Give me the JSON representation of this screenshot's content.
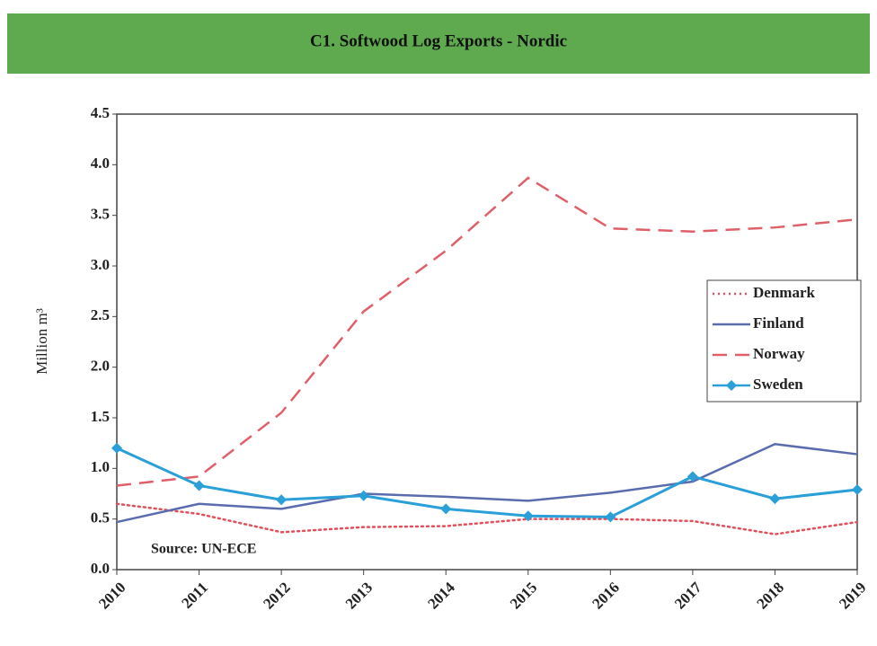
{
  "chart_data": {
    "type": "line",
    "title": "C1. Softwood Log Exports - Nordic",
    "ylabel": "Million m³",
    "annotation": "Source: UN-ECE",
    "categories": [
      "2010",
      "2011",
      "2012",
      "2013",
      "2014",
      "2015",
      "2016",
      "2017",
      "2018",
      "2019"
    ],
    "series": [
      {
        "name": "Denmark",
        "color": "#e0505a",
        "style": "dotted",
        "values": [
          0.65,
          0.55,
          0.37,
          0.42,
          0.43,
          0.5,
          0.5,
          0.48,
          0.35,
          0.47
        ]
      },
      {
        "name": "Finland",
        "color": "#5a6cae",
        "style": "solid",
        "values": [
          0.47,
          0.65,
          0.6,
          0.75,
          0.72,
          0.68,
          0.76,
          0.87,
          1.24,
          1.14
        ]
      },
      {
        "name": "Norway",
        "color": "#e0606a",
        "style": "dashed",
        "values": [
          0.83,
          0.92,
          1.55,
          2.55,
          3.15,
          3.87,
          3.37,
          3.34,
          3.38,
          3.46
        ]
      },
      {
        "name": "Sweden",
        "color": "#2a9fd8",
        "style": "solid",
        "marker": "diamond",
        "values": [
          1.2,
          0.83,
          0.69,
          0.73,
          0.6,
          0.53,
          0.52,
          0.92,
          0.7,
          0.79
        ]
      }
    ],
    "ylim": [
      0,
      4.5
    ],
    "yticks": [
      {
        "value": 0,
        "label": "0.0"
      },
      0.5,
      {
        "value": 1,
        "label": "1.0"
      },
      1.5,
      {
        "value": 2,
        "label": "2.0"
      },
      2.5,
      {
        "value": 3,
        "label": "3.0"
      },
      3.5,
      {
        "value": 4,
        "label": "4.0"
      },
      4.5
    ],
    "grid": false,
    "legend": "right"
  }
}
